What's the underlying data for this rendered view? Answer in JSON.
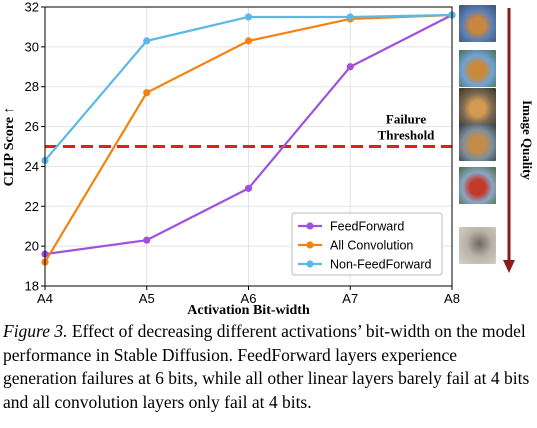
{
  "chart_data": {
    "type": "line",
    "xlabel": "Activation Bit-width",
    "ylabel": "CLIP Score",
    "ylabel_suffix": "↑",
    "categories": [
      "A4",
      "A5",
      "A6",
      "A7",
      "A8"
    ],
    "ylim": [
      18,
      32
    ],
    "yticks": [
      18,
      20,
      22,
      24,
      26,
      28,
      30,
      32
    ],
    "grid": true,
    "legend_position": "lower-right",
    "series": [
      {
        "name": "FeedForward",
        "color": "#a052dc",
        "values": [
          19.6,
          20.3,
          22.9,
          29.0,
          31.6
        ]
      },
      {
        "name": "All Convolution",
        "color": "#f5820f",
        "values": [
          19.2,
          27.7,
          30.3,
          31.4,
          31.6
        ]
      },
      {
        "name": "Non-FeedForward",
        "color": "#5ab9e6",
        "values": [
          24.3,
          30.3,
          31.5,
          31.5,
          31.6
        ]
      }
    ],
    "threshold": {
      "value": 25,
      "color": "#e02020",
      "label_line1": "Failure",
      "label_line2": "Threshold"
    },
    "side_label": "Image Quality",
    "side_arrow_color": "#8c1a1a"
  },
  "thumbnails": [
    {
      "name": "dog-image-1-icon",
      "colors": [
        "#5a7fb8",
        "#c9863e",
        "#3d4f6e"
      ]
    },
    {
      "name": "dog-image-2-icon",
      "colors": [
        "#6fa2d8",
        "#c98a3c",
        "#44704a"
      ]
    },
    {
      "name": "dog-image-3-icon",
      "colors": [
        "#7a6a55",
        "#d39a52",
        "#3c3326"
      ]
    },
    {
      "name": "dog-image-4-icon",
      "colors": [
        "#7d8f9c",
        "#c48c4a",
        "#2f3a44"
      ]
    },
    {
      "name": "cars-image-icon",
      "colors": [
        "#8aa7c8",
        "#c23a2a",
        "#4a6a3a"
      ]
    },
    {
      "name": "noise-image-icon",
      "colors": [
        "#b9b2a8",
        "#6f6860",
        "#d6d0c8"
      ]
    }
  ],
  "caption": {
    "label": "Figure 3.",
    "text": " Effect of decreasing different activations’ bit-width on the model performance in Stable Diffusion. FeedForward layers experience generation failures at 6 bits, while all other linear layers barely fail at 4 bits and all convolution layers only fail at 4 bits."
  }
}
